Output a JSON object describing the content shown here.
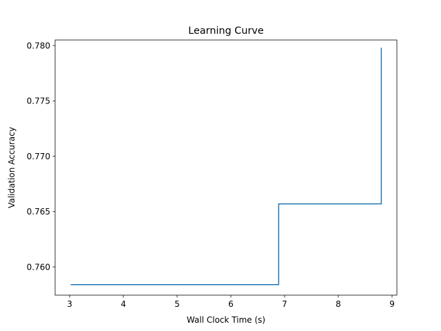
{
  "chart_data": {
    "type": "line",
    "drawstyle": "steps-post",
    "title": "Learning Curve",
    "xlabel": "Wall Clock Time (s)",
    "ylabel": "Validation Accuracy",
    "x": [
      3.02,
      6.89,
      8.8,
      8.8
    ],
    "y": [
      0.7584,
      0.7657,
      0.7657,
      0.7798
    ],
    "series": [
      {
        "values": [
          0.7584,
          0.7657,
          0.7657,
          0.7798
        ],
        "color": "#1f77b4"
      }
    ],
    "xlim": [
      2.73,
      9.09
    ],
    "ylim": [
      0.75745,
      0.7805
    ],
    "xticks": [
      3,
      4,
      5,
      6,
      7,
      8,
      9
    ],
    "xtick_labels": [
      "3",
      "4",
      "5",
      "6",
      "7",
      "8",
      "9"
    ],
    "yticks": [
      0.76,
      0.765,
      0.77,
      0.775,
      0.78
    ],
    "ytick_labels": [
      "0.760",
      "0.765",
      "0.770",
      "0.775",
      "0.780"
    ],
    "grid": false,
    "legend": "none"
  }
}
